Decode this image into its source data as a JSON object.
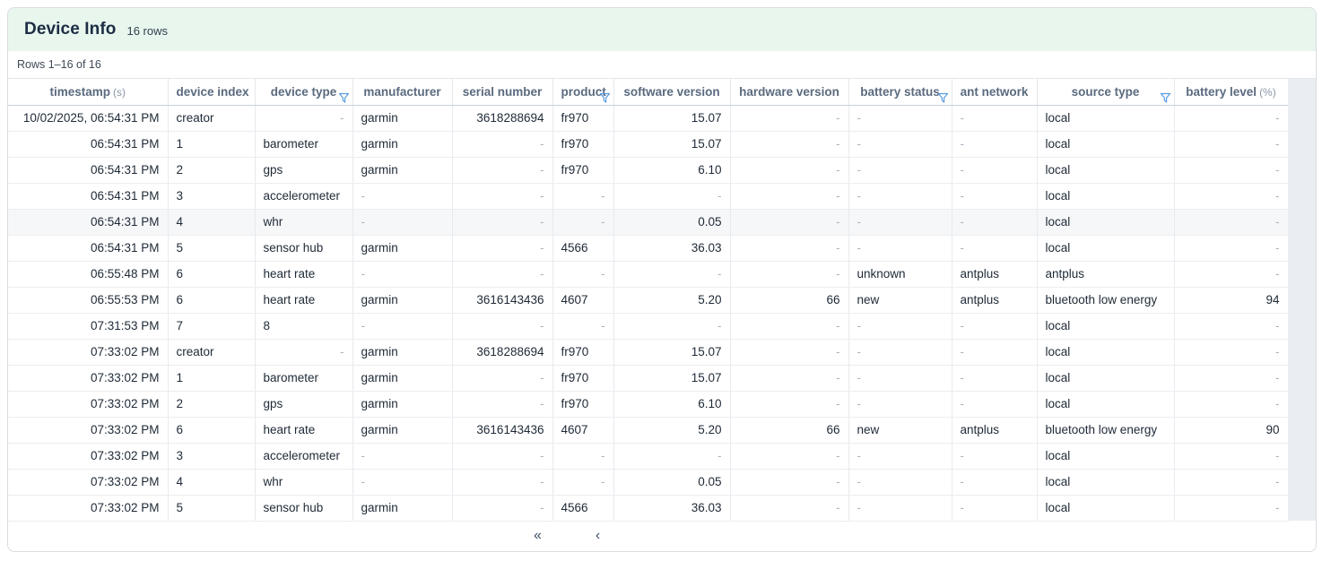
{
  "header": {
    "title": "Device Info",
    "row_count_label": "16 rows"
  },
  "toolbar": {
    "rows_range_label": "Rows 1–16 of 16"
  },
  "table": {
    "null_placeholder": "-",
    "hovered_row_index": 4,
    "columns": [
      {
        "label": "timestamp",
        "suffix": "(s)",
        "align": "right",
        "filter": false
      },
      {
        "label": "device index",
        "suffix": "",
        "align": "left",
        "filter": false
      },
      {
        "label": "device type",
        "suffix": "",
        "align": "left",
        "null_align": "right",
        "filter": true
      },
      {
        "label": "manufacturer",
        "suffix": "",
        "align": "left",
        "filter": false
      },
      {
        "label": "serial number",
        "suffix": "",
        "align": "right",
        "filter": false
      },
      {
        "label": "product",
        "suffix": "",
        "align": "left",
        "null_align": "right",
        "filter": true
      },
      {
        "label": "software version",
        "suffix": "",
        "align": "right",
        "filter": false
      },
      {
        "label": "hardware version",
        "suffix": "",
        "align": "right",
        "filter": false
      },
      {
        "label": "battery status",
        "suffix": "",
        "align": "left",
        "filter": true
      },
      {
        "label": "ant network",
        "suffix": "",
        "align": "left",
        "filter": false
      },
      {
        "label": "source type",
        "suffix": "",
        "align": "left",
        "filter": true
      },
      {
        "label": "battery level",
        "suffix": "(%)",
        "align": "right",
        "filter": false
      }
    ],
    "rows": [
      [
        "10/02/2025, 06:54:31 PM",
        "creator",
        "-",
        "garmin",
        "3618288694",
        "fr970",
        "15.07",
        "-",
        "-",
        "-",
        "local",
        "-"
      ],
      [
        "06:54:31 PM",
        "1",
        "barometer",
        "garmin",
        "-",
        "fr970",
        "15.07",
        "-",
        "-",
        "-",
        "local",
        "-"
      ],
      [
        "06:54:31 PM",
        "2",
        "gps",
        "garmin",
        "-",
        "fr970",
        "6.10",
        "-",
        "-",
        "-",
        "local",
        "-"
      ],
      [
        "06:54:31 PM",
        "3",
        "accelerometer",
        "-",
        "-",
        "-",
        "-",
        "-",
        "-",
        "-",
        "local",
        "-"
      ],
      [
        "06:54:31 PM",
        "4",
        "whr",
        "-",
        "-",
        "-",
        "0.05",
        "-",
        "-",
        "-",
        "local",
        "-"
      ],
      [
        "06:54:31 PM",
        "5",
        "sensor hub",
        "garmin",
        "-",
        "4566",
        "36.03",
        "-",
        "-",
        "-",
        "local",
        "-"
      ],
      [
        "06:55:48 PM",
        "6",
        "heart rate",
        "-",
        "-",
        "-",
        "-",
        "-",
        "unknown",
        "antplus",
        "antplus",
        "-"
      ],
      [
        "06:55:53 PM",
        "6",
        "heart rate",
        "garmin",
        "3616143436",
        "4607",
        "5.20",
        "66",
        "new",
        "antplus",
        "bluetooth low energy",
        "94"
      ],
      [
        "07:31:53 PM",
        "7",
        "8",
        "-",
        "-",
        "-",
        "-",
        "-",
        "-",
        "-",
        "local",
        "-"
      ],
      [
        "07:33:02 PM",
        "creator",
        "-",
        "garmin",
        "3618288694",
        "fr970",
        "15.07",
        "-",
        "-",
        "-",
        "local",
        "-"
      ],
      [
        "07:33:02 PM",
        "1",
        "barometer",
        "garmin",
        "-",
        "fr970",
        "15.07",
        "-",
        "-",
        "-",
        "local",
        "-"
      ],
      [
        "07:33:02 PM",
        "2",
        "gps",
        "garmin",
        "-",
        "fr970",
        "6.10",
        "-",
        "-",
        "-",
        "local",
        "-"
      ],
      [
        "07:33:02 PM",
        "6",
        "heart rate",
        "garmin",
        "3616143436",
        "4607",
        "5.20",
        "66",
        "new",
        "antplus",
        "bluetooth low energy",
        "90"
      ],
      [
        "07:33:02 PM",
        "3",
        "accelerometer",
        "-",
        "-",
        "-",
        "-",
        "-",
        "-",
        "-",
        "local",
        "-"
      ],
      [
        "07:33:02 PM",
        "4",
        "whr",
        "-",
        "-",
        "-",
        "0.05",
        "-",
        "-",
        "-",
        "local",
        "-"
      ],
      [
        "07:33:02 PM",
        "5",
        "sensor hub",
        "garmin",
        "-",
        "4566",
        "36.03",
        "-",
        "-",
        "-",
        "local",
        "-"
      ]
    ]
  },
  "pagination": {
    "first_label": "«",
    "previous_label": "‹"
  },
  "colors": {
    "title_band_bg": "#e8f6ee",
    "filter_icon": "#5b9ce0",
    "title_text": "#1c2d44",
    "header_text": "#5a6a7e",
    "cell_text": "#1e2936",
    "null_text": "#a9b3c0",
    "gutter_bg": "#eaedf1"
  }
}
